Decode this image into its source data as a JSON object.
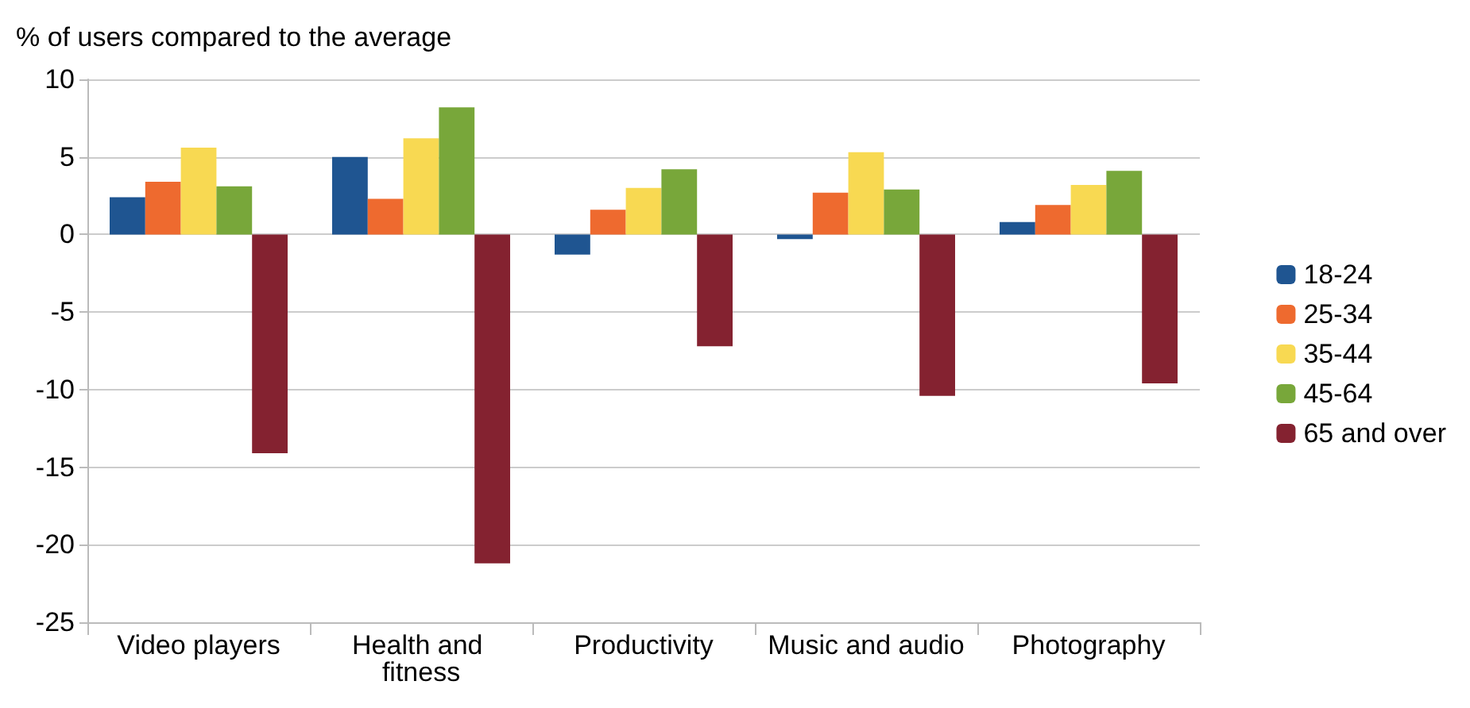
{
  "chart_data": {
    "type": "bar",
    "ylabel": "% of users compared to the average",
    "categories": [
      "Video players",
      "Health and fitness",
      "Productivity",
      "Music and audio",
      "Photography"
    ],
    "series": [
      {
        "name": "18-24",
        "color": "#1f5591",
        "values": [
          2.4,
          5.0,
          -1.3,
          -0.3,
          0.8
        ]
      },
      {
        "name": "25-34",
        "color": "#ee6a2f",
        "values": [
          3.4,
          2.3,
          1.6,
          2.7,
          1.9
        ]
      },
      {
        "name": "35-44",
        "color": "#f8d952",
        "values": [
          5.6,
          6.2,
          3.0,
          5.3,
          3.2
        ]
      },
      {
        "name": "45-64",
        "color": "#78a73a",
        "values": [
          3.1,
          8.2,
          4.2,
          2.9,
          4.1
        ]
      },
      {
        "name": "65 and over",
        "color": "#842230",
        "values": [
          -14.1,
          -21.2,
          -7.2,
          -10.4,
          -9.6
        ]
      }
    ],
    "ylim": [
      -25,
      10
    ],
    "yticks": [
      -25,
      -20,
      -15,
      -10,
      -5,
      0,
      5,
      10
    ],
    "grid": "y",
    "legend": "right"
  }
}
